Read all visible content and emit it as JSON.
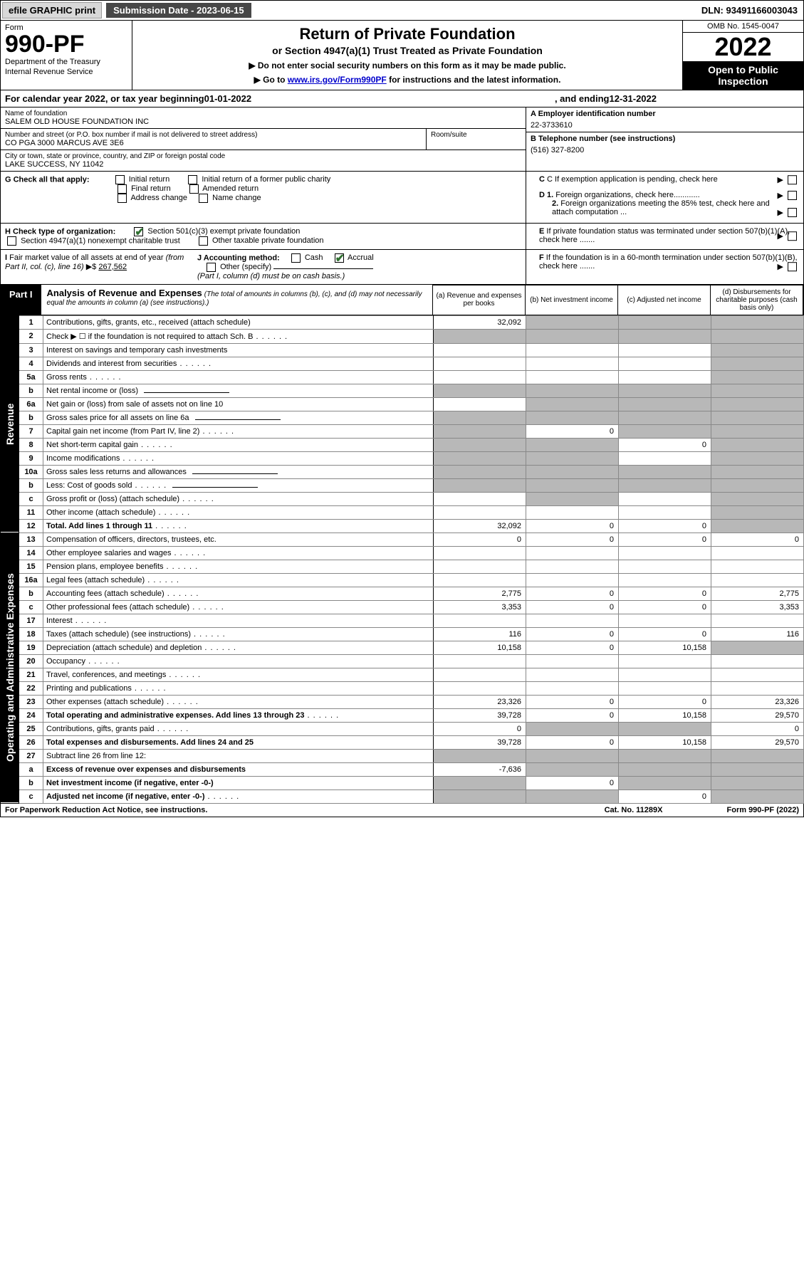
{
  "topbar": {
    "efile_label": "efile GRAPHIC print",
    "submission_label": "Submission Date - 2023-06-15",
    "dln": "DLN: 93491166003043"
  },
  "header": {
    "form_word": "Form",
    "form_number": "990-PF",
    "dept1": "Department of the Treasury",
    "dept2": "Internal Revenue Service",
    "title": "Return of Private Foundation",
    "subtitle": "or Section 4947(a)(1) Trust Treated as Private Foundation",
    "note1": "▶ Do not enter social security numbers on this form as it may be made public.",
    "note2_pre": "▶ Go to ",
    "note2_link": "www.irs.gov/Form990PF",
    "note2_post": " for instructions and the latest information.",
    "omb": "OMB No. 1545-0047",
    "year": "2022",
    "open_public": "Open to Public Inspection"
  },
  "calyear": {
    "prefix": "For calendar year 2022, or tax year beginning ",
    "begin": "01-01-2022",
    "mid": ", and ending ",
    "end": "12-31-2022"
  },
  "info": {
    "name_label": "Name of foundation",
    "name_value": "SALEM OLD HOUSE FOUNDATION INC",
    "street_label": "Number and street (or P.O. box number if mail is not delivered to street address)",
    "street_value": "CO PGA 3000 MARCUS AVE 3E6",
    "room_label": "Room/suite",
    "city_label": "City or town, state or province, country, and ZIP or foreign postal code",
    "city_value": "LAKE SUCCESS, NY  11042",
    "ein_label": "A Employer identification number",
    "ein_value": "22-3733610",
    "phone_label": "B Telephone number (see instructions)",
    "phone_value": "(516) 327-8200",
    "c_label": "C If exemption application is pending, check here",
    "d1_label": "D 1. Foreign organizations, check here............",
    "d2_label": "2. Foreign organizations meeting the 85% test, check here and attach computation ...",
    "e_label": "E  If private foundation status was terminated under section 507(b)(1)(A), check here .......",
    "f_label": "F  If the foundation is in a 60-month termination under section 507(b)(1)(B), check here .......",
    "g_label": "G Check all that apply:",
    "g_opts": [
      "Initial return",
      "Initial return of a former public charity",
      "Final return",
      "Amended return",
      "Address change",
      "Name change"
    ],
    "h_label": "H Check type of organization:",
    "h_opt1": "Section 501(c)(3) exempt private foundation",
    "h_opt2": "Section 4947(a)(1) nonexempt charitable trust",
    "h_opt3": "Other taxable private foundation",
    "i_label": "I Fair market value of all assets at end of year (from Part II, col. (c), line 16) ▶$ ",
    "i_value": "267,562",
    "j_label": "J Accounting method:",
    "j_cash": "Cash",
    "j_accrual": "Accrual",
    "j_other": "Other (specify)",
    "j_note": "(Part I, column (d) must be on cash basis.)"
  },
  "part1": {
    "label": "Part I",
    "title": "Analysis of Revenue and Expenses",
    "title_note": " (The total of amounts in columns (b), (c), and (d) may not necessarily equal the amounts in column (a) (see instructions).)",
    "colA": "(a)   Revenue and expenses per books",
    "colB": "(b)   Net investment income",
    "colC": "(c)   Adjusted net income",
    "colD": "(d)   Disbursements for charitable purposes (cash basis only)"
  },
  "sidelabels": {
    "revenue": "Revenue",
    "expenses": "Operating and Administrative Expenses"
  },
  "rows": [
    {
      "n": "1",
      "d": "Contributions, gifts, grants, etc., received (attach schedule)",
      "a": "32,092",
      "b": "shaded",
      "c": "shaded",
      "ds": "shaded"
    },
    {
      "n": "2",
      "d": "Check ▶ ☐ if the foundation is not required to attach Sch. B",
      "dot": true,
      "a": "shaded",
      "b": "shaded",
      "c": "shaded",
      "ds": "shaded"
    },
    {
      "n": "3",
      "d": "Interest on savings and temporary cash investments",
      "a": "",
      "b": "",
      "c": "",
      "ds": "shaded"
    },
    {
      "n": "4",
      "d": "Dividends and interest from securities",
      "dot": true,
      "a": "",
      "b": "",
      "c": "",
      "ds": "shaded"
    },
    {
      "n": "5a",
      "d": "Gross rents",
      "dot": true,
      "a": "",
      "b": "",
      "c": "",
      "ds": "shaded"
    },
    {
      "n": "b",
      "d": "Net rental income or (loss)",
      "underline": true,
      "a": "shaded",
      "b": "shaded",
      "c": "shaded",
      "ds": "shaded"
    },
    {
      "n": "6a",
      "d": "Net gain or (loss) from sale of assets not on line 10",
      "a": "",
      "b": "shaded",
      "c": "shaded",
      "ds": "shaded"
    },
    {
      "n": "b",
      "d": "Gross sales price for all assets on line 6a",
      "underline": true,
      "a": "shaded",
      "b": "shaded",
      "c": "shaded",
      "ds": "shaded"
    },
    {
      "n": "7",
      "d": "Capital gain net income (from Part IV, line 2)",
      "dot": true,
      "a": "shaded",
      "b": "0",
      "c": "shaded",
      "ds": "shaded"
    },
    {
      "n": "8",
      "d": "Net short-term capital gain",
      "dot": true,
      "a": "shaded",
      "b": "shaded",
      "c": "0",
      "ds": "shaded"
    },
    {
      "n": "9",
      "d": "Income modifications",
      "dot": true,
      "a": "shaded",
      "b": "shaded",
      "c": "",
      "ds": "shaded"
    },
    {
      "n": "10a",
      "d": "Gross sales less returns and allowances",
      "underline": true,
      "a": "shaded",
      "b": "shaded",
      "c": "shaded",
      "ds": "shaded"
    },
    {
      "n": "b",
      "d": "Less: Cost of goods sold",
      "dot": true,
      "underline": true,
      "a": "shaded",
      "b": "shaded",
      "c": "shaded",
      "ds": "shaded"
    },
    {
      "n": "c",
      "d": "Gross profit or (loss) (attach schedule)",
      "dot": true,
      "a": "",
      "b": "shaded",
      "c": "",
      "ds": "shaded"
    },
    {
      "n": "11",
      "d": "Other income (attach schedule)",
      "dot": true,
      "a": "",
      "b": "",
      "c": "",
      "ds": "shaded"
    },
    {
      "n": "12",
      "d": "Total. Add lines 1 through 11",
      "dot": true,
      "bold": true,
      "a": "32,092",
      "b": "0",
      "c": "0",
      "ds": "shaded"
    },
    {
      "n": "13",
      "d": "Compensation of officers, directors, trustees, etc.",
      "a": "0",
      "b": "0",
      "c": "0",
      "ds": "0"
    },
    {
      "n": "14",
      "d": "Other employee salaries and wages",
      "dot": true,
      "a": "",
      "b": "",
      "c": "",
      "ds": ""
    },
    {
      "n": "15",
      "d": "Pension plans, employee benefits",
      "dot": true,
      "a": "",
      "b": "",
      "c": "",
      "ds": ""
    },
    {
      "n": "16a",
      "d": "Legal fees (attach schedule)",
      "dot": true,
      "a": "",
      "b": "",
      "c": "",
      "ds": ""
    },
    {
      "n": "b",
      "d": "Accounting fees (attach schedule)",
      "dot": true,
      "a": "2,775",
      "b": "0",
      "c": "0",
      "ds": "2,775"
    },
    {
      "n": "c",
      "d": "Other professional fees (attach schedule)",
      "dot": true,
      "a": "3,353",
      "b": "0",
      "c": "0",
      "ds": "3,353"
    },
    {
      "n": "17",
      "d": "Interest",
      "dot": true,
      "a": "",
      "b": "",
      "c": "",
      "ds": ""
    },
    {
      "n": "18",
      "d": "Taxes (attach schedule) (see instructions)",
      "dot": true,
      "a": "116",
      "b": "0",
      "c": "0",
      "ds": "116"
    },
    {
      "n": "19",
      "d": "Depreciation (attach schedule) and depletion",
      "dot": true,
      "a": "10,158",
      "b": "0",
      "c": "10,158",
      "ds": "shaded"
    },
    {
      "n": "20",
      "d": "Occupancy",
      "dot": true,
      "a": "",
      "b": "",
      "c": "",
      "ds": ""
    },
    {
      "n": "21",
      "d": "Travel, conferences, and meetings",
      "dot": true,
      "a": "",
      "b": "",
      "c": "",
      "ds": ""
    },
    {
      "n": "22",
      "d": "Printing and publications",
      "dot": true,
      "a": "",
      "b": "",
      "c": "",
      "ds": ""
    },
    {
      "n": "23",
      "d": "Other expenses (attach schedule)",
      "dot": true,
      "a": "23,326",
      "b": "0",
      "c": "0",
      "ds": "23,326"
    },
    {
      "n": "24",
      "d": "Total operating and administrative expenses. Add lines 13 through 23",
      "dot": true,
      "bold": true,
      "a": "39,728",
      "b": "0",
      "c": "10,158",
      "ds": "29,570"
    },
    {
      "n": "25",
      "d": "Contributions, gifts, grants paid",
      "dot": true,
      "a": "0",
      "b": "shaded",
      "c": "shaded",
      "ds": "0"
    },
    {
      "n": "26",
      "d": "Total expenses and disbursements. Add lines 24 and 25",
      "bold": true,
      "a": "39,728",
      "b": "0",
      "c": "10,158",
      "ds": "29,570"
    },
    {
      "n": "27",
      "d": "Subtract line 26 from line 12:",
      "a": "shaded",
      "b": "shaded",
      "c": "shaded",
      "ds": "shaded"
    },
    {
      "n": "a",
      "d": "Excess of revenue over expenses and disbursements",
      "bold": true,
      "a": "-7,636",
      "b": "shaded",
      "c": "shaded",
      "ds": "shaded"
    },
    {
      "n": "b",
      "d": "Net investment income (if negative, enter -0-)",
      "bold": true,
      "a": "shaded",
      "b": "0",
      "c": "shaded",
      "ds": "shaded"
    },
    {
      "n": "c",
      "d": "Adjusted net income (if negative, enter -0-)",
      "dot": true,
      "bold": true,
      "a": "shaded",
      "b": "shaded",
      "c": "0",
      "ds": "shaded"
    }
  ],
  "footer": {
    "left": "For Paperwork Reduction Act Notice, see instructions.",
    "center": "Cat. No. 11289X",
    "right": "Form 990-PF (2022)"
  },
  "colors": {
    "shaded": "#b8b8b8",
    "black": "#000000",
    "link": "#0000cc",
    "check_green": "#2f7030",
    "topbar_gray": "#d8d8d8",
    "topbar_dark": "#474747"
  }
}
